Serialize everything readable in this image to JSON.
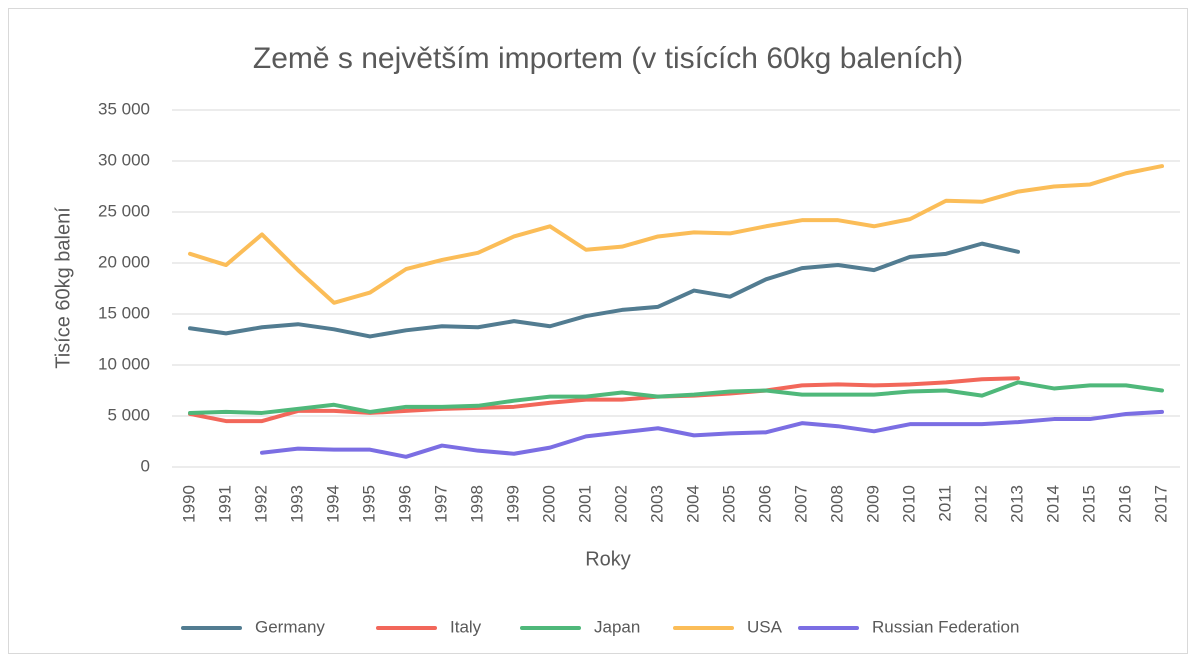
{
  "chart_data": {
    "type": "line",
    "title": "Země s největším importem (v tisících 60kg baleních)",
    "x_label": "Roky",
    "y_label": "Tisíce 60kg balení",
    "categories": [
      "1990",
      "1991",
      "1992",
      "1993",
      "1994",
      "1995",
      "1996",
      "1997",
      "1998",
      "1999",
      "2000",
      "2001",
      "2002",
      "2003",
      "2004",
      "2005",
      "2006",
      "2007",
      "2008",
      "2009",
      "2010",
      "2011",
      "2012",
      "2013",
      "2014",
      "2015",
      "2016",
      "2017"
    ],
    "series": [
      {
        "name": "Germany",
        "color": "#527c91",
        "values": [
          13600,
          13100,
          13700,
          14000,
          13500,
          12800,
          13400,
          13800,
          13700,
          14300,
          13800,
          14800,
          15400,
          15700,
          17300,
          16700,
          18400,
          19500,
          19800,
          19300,
          20600,
          20900,
          21900,
          21100,
          null,
          null,
          null,
          null
        ]
      },
      {
        "name": "Italy",
        "color": "#f2675a",
        "values": [
          5200,
          4500,
          4500,
          5500,
          5500,
          5300,
          5500,
          5700,
          5800,
          5900,
          6300,
          6600,
          6600,
          6900,
          7000,
          7200,
          7500,
          8000,
          8100,
          8000,
          8100,
          8300,
          8600,
          8700,
          null,
          null,
          null,
          null
        ]
      },
      {
        "name": "Japan",
        "color": "#4fb87a",
        "values": [
          5300,
          5400,
          5300,
          5700,
          6100,
          5400,
          5900,
          5900,
          6000,
          6500,
          6900,
          6900,
          7300,
          6900,
          7100,
          7400,
          7500,
          7100,
          7100,
          7100,
          7400,
          7500,
          7000,
          8300,
          7700,
          8000,
          8000,
          7500
        ]
      },
      {
        "name": "USA",
        "color": "#fbbd58",
        "values": [
          20900,
          19800,
          22800,
          19300,
          16100,
          17100,
          19400,
          20300,
          21000,
          22600,
          23600,
          21300,
          21600,
          22600,
          23000,
          22900,
          23600,
          24200,
          24200,
          23600,
          24300,
          26100,
          26000,
          27000,
          27500,
          27700,
          28800,
          29500
        ]
      },
      {
        "name": "Russian Federation",
        "color": "#7b6ee3",
        "values": [
          null,
          null,
          1400,
          1800,
          1700,
          1700,
          1000,
          2100,
          1600,
          1300,
          1900,
          3000,
          3400,
          3800,
          3100,
          3300,
          3400,
          4300,
          4000,
          3500,
          4200,
          4200,
          4200,
          4400,
          4700,
          4700,
          5200,
          5400
        ]
      }
    ],
    "ylim": [
      0,
      35000
    ],
    "yticks": [
      0,
      {
        "value": 5000,
        "label": "5 000"
      },
      {
        "value": 10000,
        "label": "10 000"
      },
      {
        "value": 15000,
        "label": "15 000"
      },
      {
        "value": 20000,
        "label": "20 000"
      },
      {
        "value": 25000,
        "label": "25 000"
      },
      {
        "value": 30000,
        "label": "30 000"
      },
      {
        "value": 35000,
        "label": "35 000"
      }
    ],
    "grid": true,
    "legend": "bottom"
  }
}
